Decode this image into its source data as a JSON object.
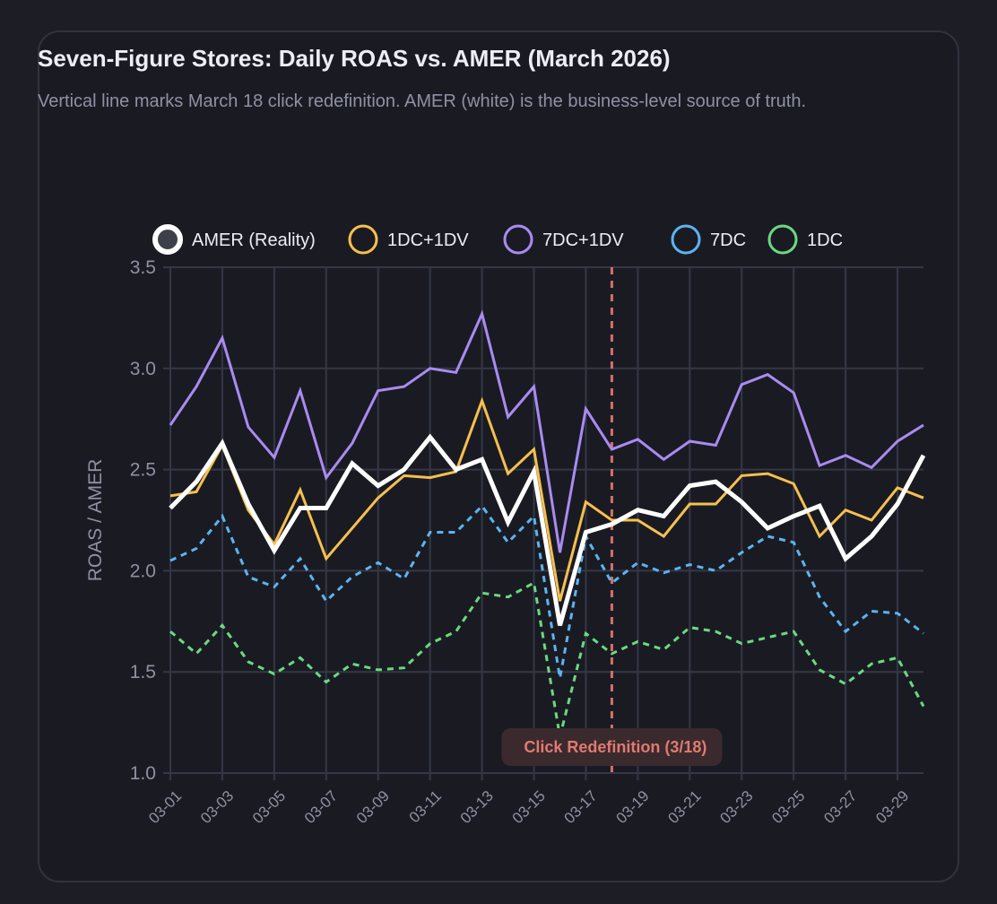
{
  "chart_data": {
    "type": "line",
    "title": "Seven-Figure Stores: Daily ROAS vs. AMER (March 2026)",
    "subtitle": "Vertical line marks March 18 click redefinition. AMER (white) is the business-level source of truth.",
    "xlabel": "",
    "ylabel": "ROAS / AMER",
    "ylim": [
      1.0,
      3.5
    ],
    "yticks": [
      "1.0",
      "1.5",
      "2.0",
      "2.5",
      "3.0",
      "3.5"
    ],
    "ytick_values": [
      1.0,
      1.5,
      2.0,
      2.5,
      3.0,
      3.5
    ],
    "x": [
      "03-01",
      "03-02",
      "03-03",
      "03-04",
      "03-05",
      "03-06",
      "03-07",
      "03-08",
      "03-09",
      "03-10",
      "03-11",
      "03-12",
      "03-13",
      "03-14",
      "03-15",
      "03-16",
      "03-17",
      "03-18",
      "03-19",
      "03-20",
      "03-21",
      "03-22",
      "03-23",
      "03-24",
      "03-25",
      "03-26",
      "03-27",
      "03-28",
      "03-29",
      "03-30"
    ],
    "xtick_labels": [
      "03-01",
      "03-03",
      "03-05",
      "03-07",
      "03-09",
      "03-11",
      "03-13",
      "03-15",
      "03-17",
      "03-19",
      "03-21",
      "03-23",
      "03-25",
      "03-27",
      "03-29"
    ],
    "legend_position": "top",
    "series": [
      {
        "name": "AMER (Reality)",
        "color": "#ffffff",
        "style": "solid",
        "width": "thick",
        "values": [
          2.31,
          2.44,
          2.63,
          2.33,
          2.1,
          2.31,
          2.31,
          2.53,
          2.42,
          2.5,
          2.66,
          2.5,
          2.55,
          2.24,
          2.49,
          1.73,
          2.19,
          2.23,
          2.3,
          2.27,
          2.42,
          2.44,
          2.34,
          2.21,
          2.27,
          2.32,
          2.06,
          2.17,
          2.33,
          2.57
        ]
      },
      {
        "name": "1DC+1DV",
        "color": "#f5c04e",
        "style": "solid",
        "width": "normal",
        "values": [
          2.37,
          2.39,
          2.62,
          2.3,
          2.13,
          2.4,
          2.06,
          2.21,
          2.36,
          2.47,
          2.46,
          2.49,
          2.84,
          2.48,
          2.6,
          1.85,
          2.34,
          2.25,
          2.25,
          2.17,
          2.33,
          2.33,
          2.47,
          2.48,
          2.43,
          2.17,
          2.3,
          2.25,
          2.41,
          2.36
        ]
      },
      {
        "name": "7DC+1DV",
        "color": "#a98bf2",
        "style": "solid",
        "width": "normal",
        "values": [
          2.72,
          2.91,
          3.15,
          2.71,
          2.56,
          2.89,
          2.46,
          2.63,
          2.89,
          2.91,
          3.0,
          2.98,
          3.27,
          2.76,
          2.91,
          2.09,
          2.8,
          2.6,
          2.65,
          2.55,
          2.64,
          2.62,
          2.92,
          2.97,
          2.88,
          2.52,
          2.57,
          2.51,
          2.64,
          2.72
        ]
      },
      {
        "name": "7DC",
        "color": "#5cb4f0",
        "style": "dashed",
        "width": "normal",
        "values": [
          2.05,
          2.11,
          2.27,
          1.97,
          1.92,
          2.06,
          1.85,
          1.97,
          2.04,
          1.96,
          2.19,
          2.19,
          2.32,
          2.14,
          2.27,
          1.47,
          2.17,
          1.94,
          2.04,
          1.99,
          2.03,
          2.0,
          2.09,
          2.17,
          2.14,
          1.87,
          1.7,
          1.8,
          1.79,
          1.69
        ]
      },
      {
        "name": "1DC",
        "color": "#6bd982",
        "style": "dashed",
        "width": "normal",
        "values": [
          1.7,
          1.59,
          1.73,
          1.55,
          1.49,
          1.57,
          1.45,
          1.54,
          1.51,
          1.52,
          1.64,
          1.7,
          1.89,
          1.87,
          1.94,
          1.18,
          1.69,
          1.59,
          1.65,
          1.61,
          1.72,
          1.7,
          1.64,
          1.67,
          1.7,
          1.51,
          1.44,
          1.54,
          1.57,
          1.33
        ]
      }
    ],
    "annotations": [
      {
        "x": "03-18",
        "type": "vertical-dashed-line",
        "color": "#d4706a",
        "label": "Click Redefinition (3/18)"
      }
    ],
    "grid": true
  }
}
